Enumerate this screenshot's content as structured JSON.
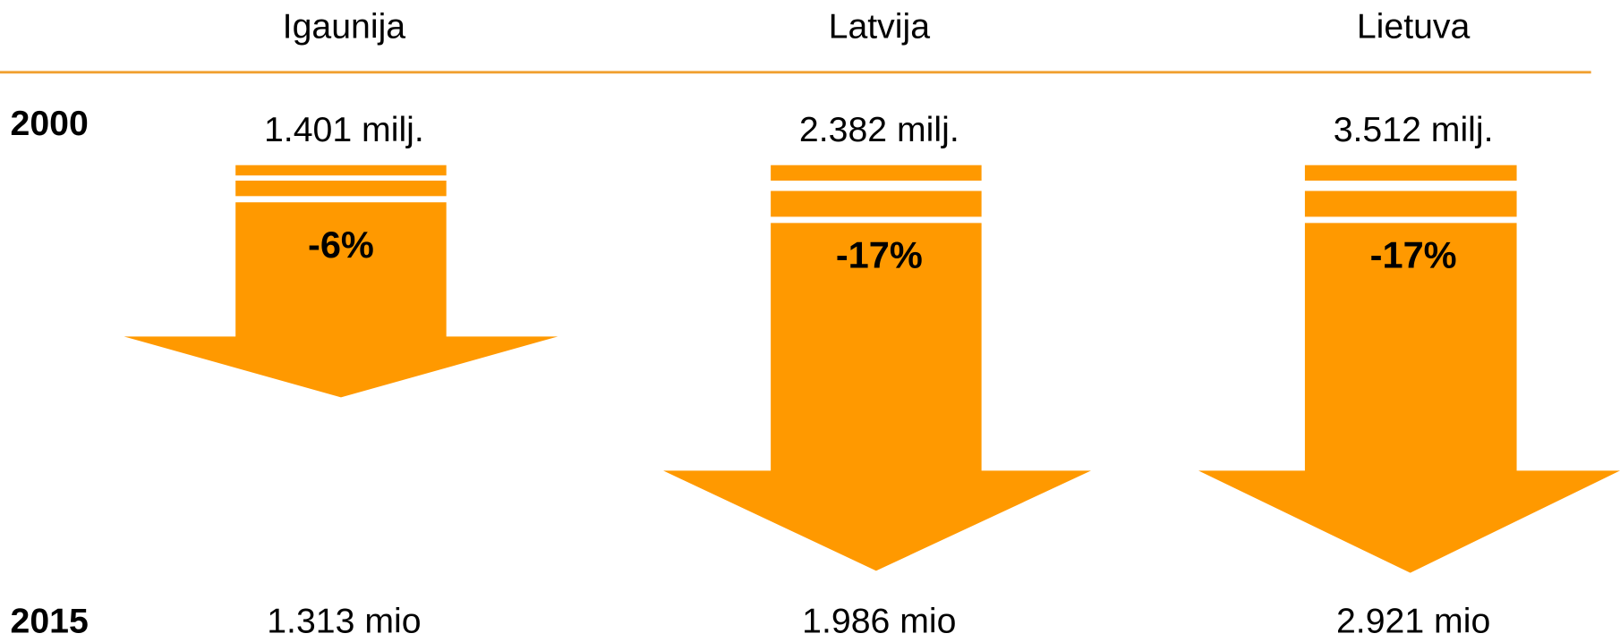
{
  "years": {
    "start": "2000",
    "end": "2015"
  },
  "columns": [
    {
      "country": "Igaunija",
      "start": "1.401 milj.",
      "change": "-6%",
      "end": "1.313 mio"
    },
    {
      "country": "Latvija",
      "start": "2.382 milj.",
      "change": "-17%",
      "end": "1.986 mio"
    },
    {
      "country": "Lietuva",
      "start": "3.512 milj.",
      "change": "-17%",
      "end": "2.921 mio"
    }
  ]
}
